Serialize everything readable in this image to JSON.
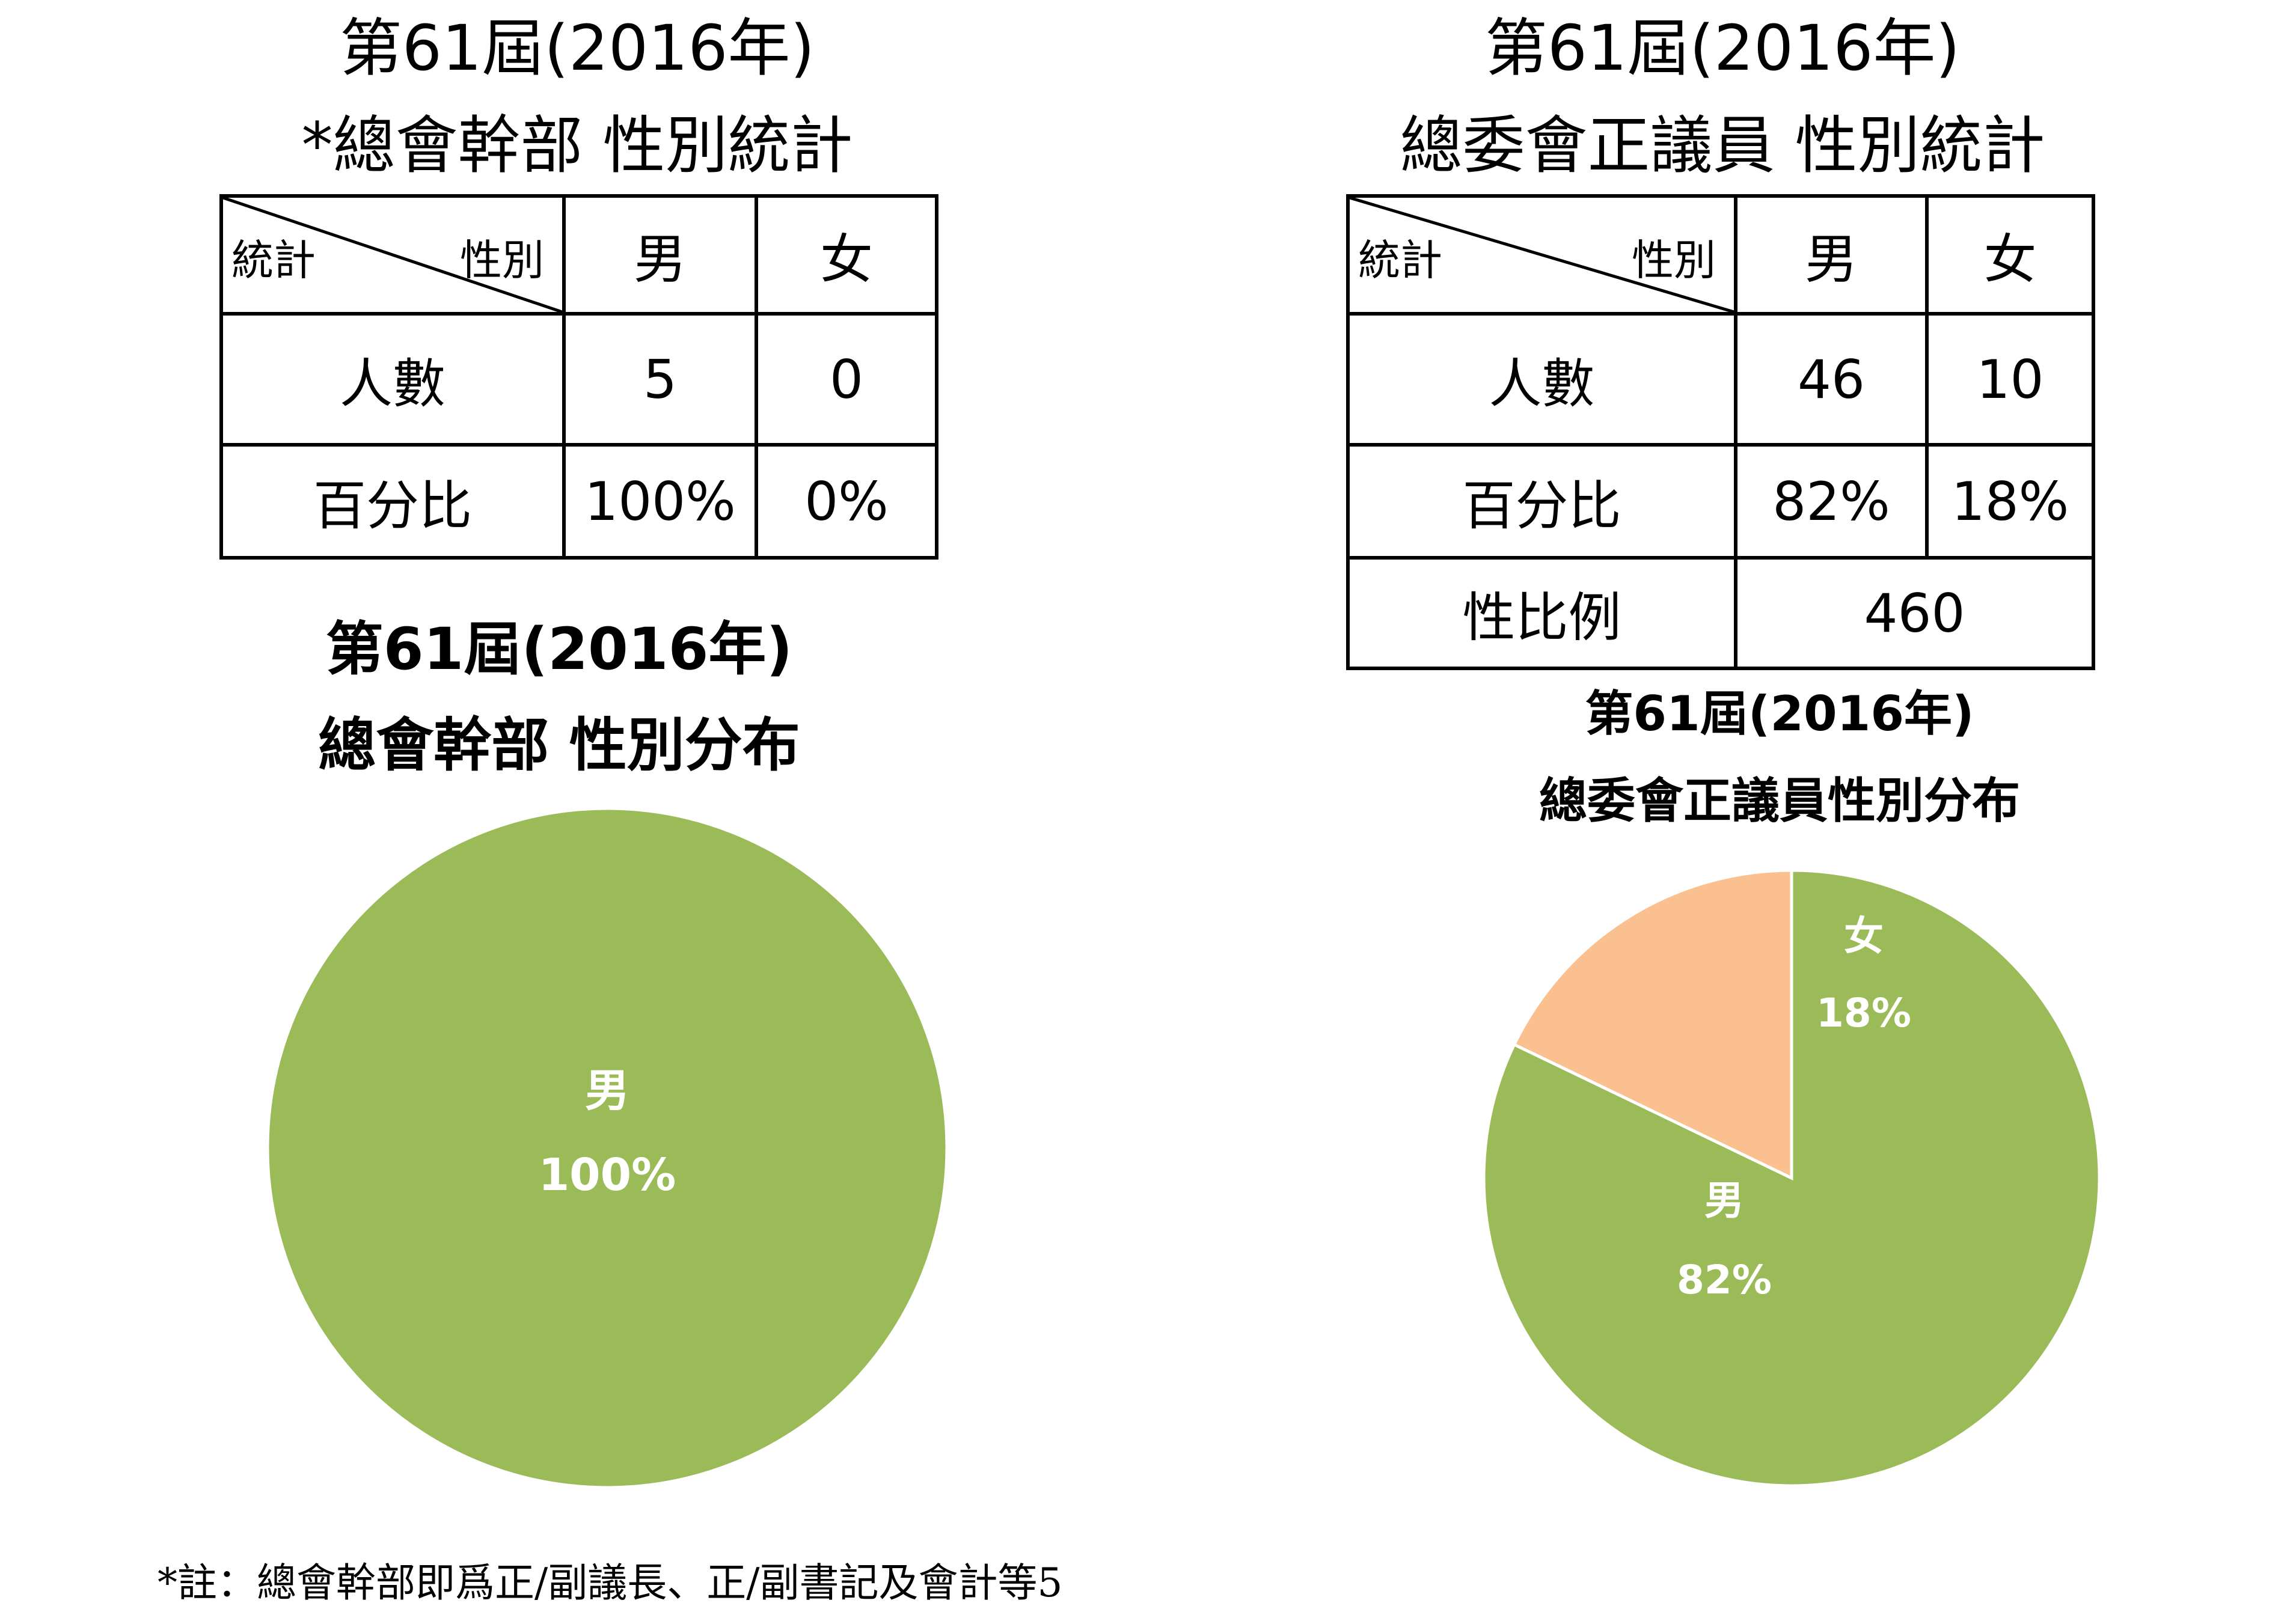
{
  "left": {
    "heading_line1": "第61屆(2016年)",
    "heading_line2": "*總會幹部  性別統計",
    "table": {
      "corner_left": "統計",
      "corner_right": "性別",
      "col_male": "男",
      "col_female": "女",
      "row1_label": "人數",
      "row1_male": "5",
      "row1_female": "0",
      "row2_label": "百分比",
      "row2_male": "100%",
      "row2_female": "0%"
    },
    "chart_title_line1": "第61屆(2016年)",
    "chart_title_line2": "總會幹部 性別分布"
  },
  "right": {
    "heading_line1": "第61屆(2016年)",
    "heading_line2": "總委會正議員 性別統計",
    "table": {
      "corner_left": "統計",
      "corner_right": "性別",
      "col_male": "男",
      "col_female": "女",
      "row1_label": "人數",
      "row1_male": "46",
      "row1_female": "10",
      "row2_label": "百分比",
      "row2_male": "82%",
      "row2_female": "18%",
      "row3_label": "性比例",
      "row3_value": "460"
    },
    "chart_title_line1": "第61屆(2016年)",
    "chart_title_line2": "總委會正議員性別分布"
  },
  "footnote": "*註：總會幹部即爲正/副議長、正/副書記及會計等5",
  "colors": {
    "male": "#9bbb59",
    "female": "#fac090",
    "label": "#ffffff"
  },
  "chart_data": [
    {
      "type": "pie",
      "title": "第61屆(2016年) 總會幹部 性別分布",
      "categories": [
        "男",
        "女"
      ],
      "values": [
        5,
        0
      ],
      "labels": [
        [
          "男",
          "100%"
        ]
      ],
      "colors": [
        "#9bbb59",
        "#fac090"
      ]
    },
    {
      "type": "pie",
      "title": "第61屆(2016年) 總委會正議員性別分布",
      "categories": [
        "男",
        "女"
      ],
      "values": [
        46,
        10
      ],
      "labels": [
        [
          "男",
          "82%"
        ],
        [
          "女",
          "18%"
        ]
      ],
      "colors": [
        "#9bbb59",
        "#fac090"
      ]
    }
  ]
}
